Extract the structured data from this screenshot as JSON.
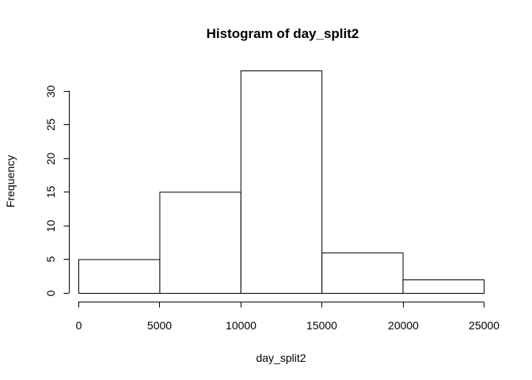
{
  "chart_data": {
    "type": "bar",
    "title": "Histogram of day_split2",
    "xlabel": "day_split2",
    "ylabel": "Frequency",
    "bins": [
      {
        "from": 0,
        "to": 5000,
        "count": 5
      },
      {
        "from": 5000,
        "to": 10000,
        "count": 15
      },
      {
        "from": 10000,
        "to": 15000,
        "count": 33
      },
      {
        "from": 15000,
        "to": 20000,
        "count": 6
      },
      {
        "from": 20000,
        "to": 25000,
        "count": 2
      }
    ],
    "xlim": [
      0,
      25000
    ],
    "ylim": [
      0,
      33
    ],
    "x_ticks": [
      0,
      5000,
      10000,
      15000,
      20000,
      25000
    ],
    "x_tick_labels": [
      "0",
      "5000",
      "10000",
      "15000",
      "20000",
      "25000"
    ],
    "y_ticks": [
      0,
      5,
      10,
      15,
      20,
      25,
      30
    ],
    "y_tick_labels": [
      "0",
      "5",
      "10",
      "15",
      "20",
      "25",
      "30"
    ],
    "grid": false,
    "colors": {
      "bar_fill": "#ffffff",
      "bar_stroke": "#000000",
      "axis": "#000000"
    }
  }
}
